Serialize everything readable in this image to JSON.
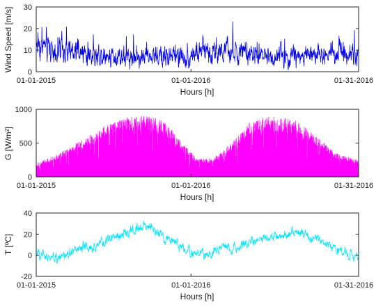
{
  "chart_data": [
    {
      "type": "line",
      "series": [
        {
          "color": "#0000ee"
        }
      ],
      "xlabel": "Hours [h]",
      "ylabel": "Wind Speed [m/s]",
      "ylim": [
        0,
        30
      ],
      "yticks": [
        "0",
        "10",
        "20",
        "30"
      ],
      "xticks": [
        "01-01-2015",
        "01-01-2016",
        "01-31-2016"
      ],
      "profile": {
        "kind": "wind",
        "t": [
          0,
          0.02,
          0.08,
          0.15,
          0.25,
          0.35,
          0.45,
          0.5,
          0.55,
          0.6,
          0.7,
          0.8,
          0.9,
          0.95,
          1.0
        ],
        "base": [
          14,
          12,
          9,
          8,
          7.5,
          7,
          7,
          8.5,
          10,
          9,
          7,
          7.5,
          8,
          10,
          8
        ],
        "spread": [
          8,
          7,
          6,
          5,
          4.5,
          4,
          4.5,
          5.5,
          6,
          5,
          4,
          4.5,
          5,
          6,
          5
        ]
      },
      "grid": false
    },
    {
      "type": "line",
      "series": [
        {
          "color": "#ff00ff"
        }
      ],
      "xlabel": "Hours [h]",
      "ylabel": "G [W/m²]",
      "ylim": [
        0,
        1000
      ],
      "yticks": [
        "0",
        "500",
        "1000"
      ],
      "xticks": [
        "01-01-2015",
        "01-01-2016",
        "01-31-2016"
      ],
      "profile": {
        "kind": "solar",
        "t": [
          0,
          0.05,
          0.12,
          0.2,
          0.28,
          0.34,
          0.4,
          0.45,
          0.5,
          0.55,
          0.6,
          0.66,
          0.72,
          0.8,
          0.87,
          0.93,
          1.0
        ],
        "base": [
          200,
          300,
          480,
          720,
          880,
          920,
          820,
          520,
          260,
          280,
          480,
          800,
          900,
          850,
          600,
          350,
          250
        ],
        "spread": [
          0,
          0,
          0,
          0,
          0,
          0,
          0,
          0,
          0,
          0,
          0,
          0,
          0,
          0,
          0,
          0,
          0
        ]
      },
      "grid": false
    },
    {
      "type": "line",
      "series": [
        {
          "color": "#00e5ff"
        }
      ],
      "xlabel": "Hours [h]",
      "ylabel": "T [ºC]",
      "ylim": [
        -20,
        40
      ],
      "yticks": [
        "-20",
        "0",
        "20",
        "40"
      ],
      "xticks": [
        "01-01-2015",
        "01-01-2016",
        "01-31-2016"
      ],
      "profile": {
        "kind": "temp",
        "t": [
          0,
          0.05,
          0.1,
          0.15,
          0.2,
          0.27,
          0.32,
          0.36,
          0.42,
          0.48,
          0.52,
          0.56,
          0.62,
          0.7,
          0.77,
          0.82,
          0.88,
          0.94,
          1.0
        ],
        "base": [
          0,
          -2,
          2,
          6,
          12,
          20,
          27,
          25,
          12,
          3,
          0,
          5,
          8,
          16,
          20,
          21,
          14,
          5,
          -3
        ],
        "spread": [
          6,
          6,
          7,
          7,
          7,
          7,
          6,
          6,
          6,
          6,
          6,
          6,
          6,
          6,
          6,
          6,
          6,
          6,
          6
        ]
      },
      "grid": false
    }
  ]
}
